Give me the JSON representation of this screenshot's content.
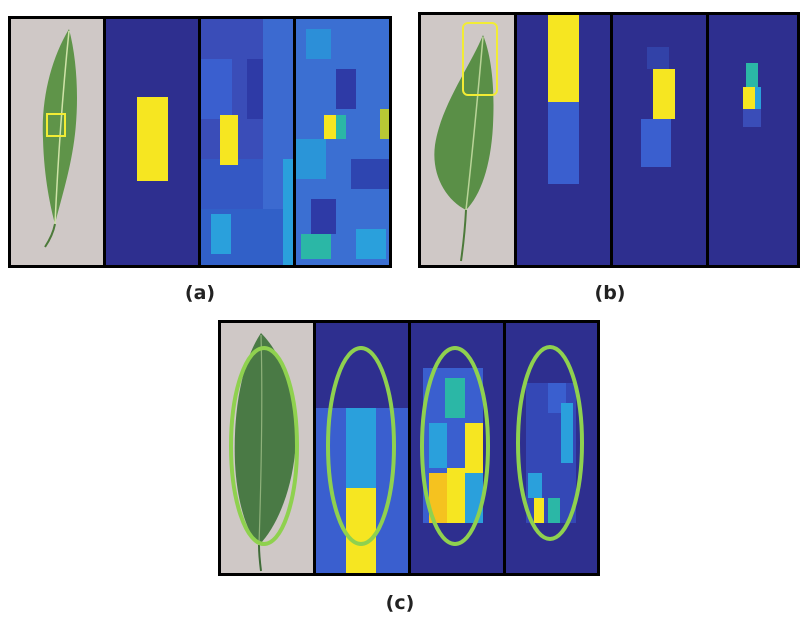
{
  "figure": {
    "captions": {
      "a": "(a)",
      "b": "(b)",
      "c": "(c)"
    }
  },
  "colors": {
    "background": "#2e2f8f",
    "low": "#3a5fcf",
    "mid": "#2aa0dc",
    "teal": "#2bb7a6",
    "high": "#f6e621",
    "orange": "#f5c21f",
    "highlight_box": "#f2ec35",
    "ellipse": "#8fd14f",
    "leaf": "#5f9449",
    "leaf_dark": "#3f6c38",
    "photo_bg": "#cfc8c6"
  },
  "icons": {
    "leaf_a": "tomato-leaf-image",
    "leaf_b": "tomato-leaf-image",
    "leaf_c": "tomato-leaf-image"
  }
}
